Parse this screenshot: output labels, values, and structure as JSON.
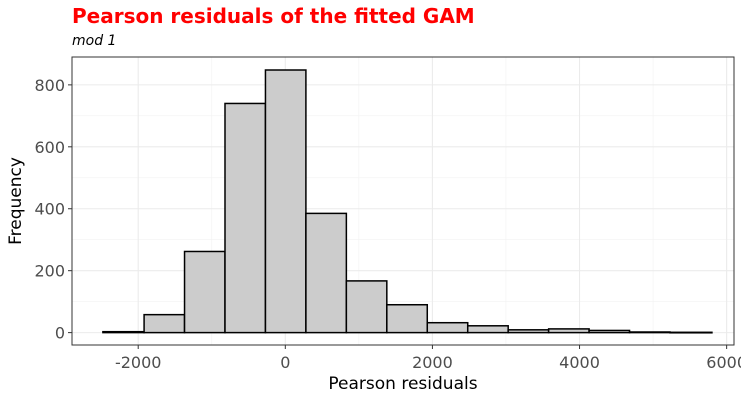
{
  "chart_data": {
    "type": "bar",
    "title": "Pearson residuals of the fitted GAM",
    "subtitle": "mod 1",
    "xlabel": "Pearson residuals",
    "ylabel": "Frequency",
    "xlim": [
      -2900,
      6100
    ],
    "ylim": [
      -40,
      890
    ],
    "x_ticks": [
      -2000,
      0,
      2000,
      4000,
      6000
    ],
    "y_ticks": [
      0,
      200,
      400,
      600,
      800
    ],
    "grid": true,
    "bar_fill": "#cccccc",
    "bar_stroke": "#000000",
    "title_color": "#ff0000",
    "bins": [
      {
        "x0": -2480,
        "x1": -1920,
        "value": 3
      },
      {
        "x0": -1920,
        "x1": -1370,
        "value": 58
      },
      {
        "x0": -1370,
        "x1": -820,
        "value": 262
      },
      {
        "x0": -820,
        "x1": -270,
        "value": 740
      },
      {
        "x0": -270,
        "x1": 280,
        "value": 848
      },
      {
        "x0": 280,
        "x1": 830,
        "value": 385
      },
      {
        "x0": 830,
        "x1": 1380,
        "value": 167
      },
      {
        "x0": 1380,
        "x1": 1930,
        "value": 90
      },
      {
        "x0": 1930,
        "x1": 2480,
        "value": 32
      },
      {
        "x0": 2480,
        "x1": 3030,
        "value": 22
      },
      {
        "x0": 3030,
        "x1": 3580,
        "value": 9
      },
      {
        "x0": 3580,
        "x1": 4130,
        "value": 12
      },
      {
        "x0": 4130,
        "x1": 4680,
        "value": 7
      },
      {
        "x0": 4680,
        "x1": 5230,
        "value": 2
      },
      {
        "x0": 5230,
        "x1": 5800,
        "value": 1
      }
    ]
  }
}
